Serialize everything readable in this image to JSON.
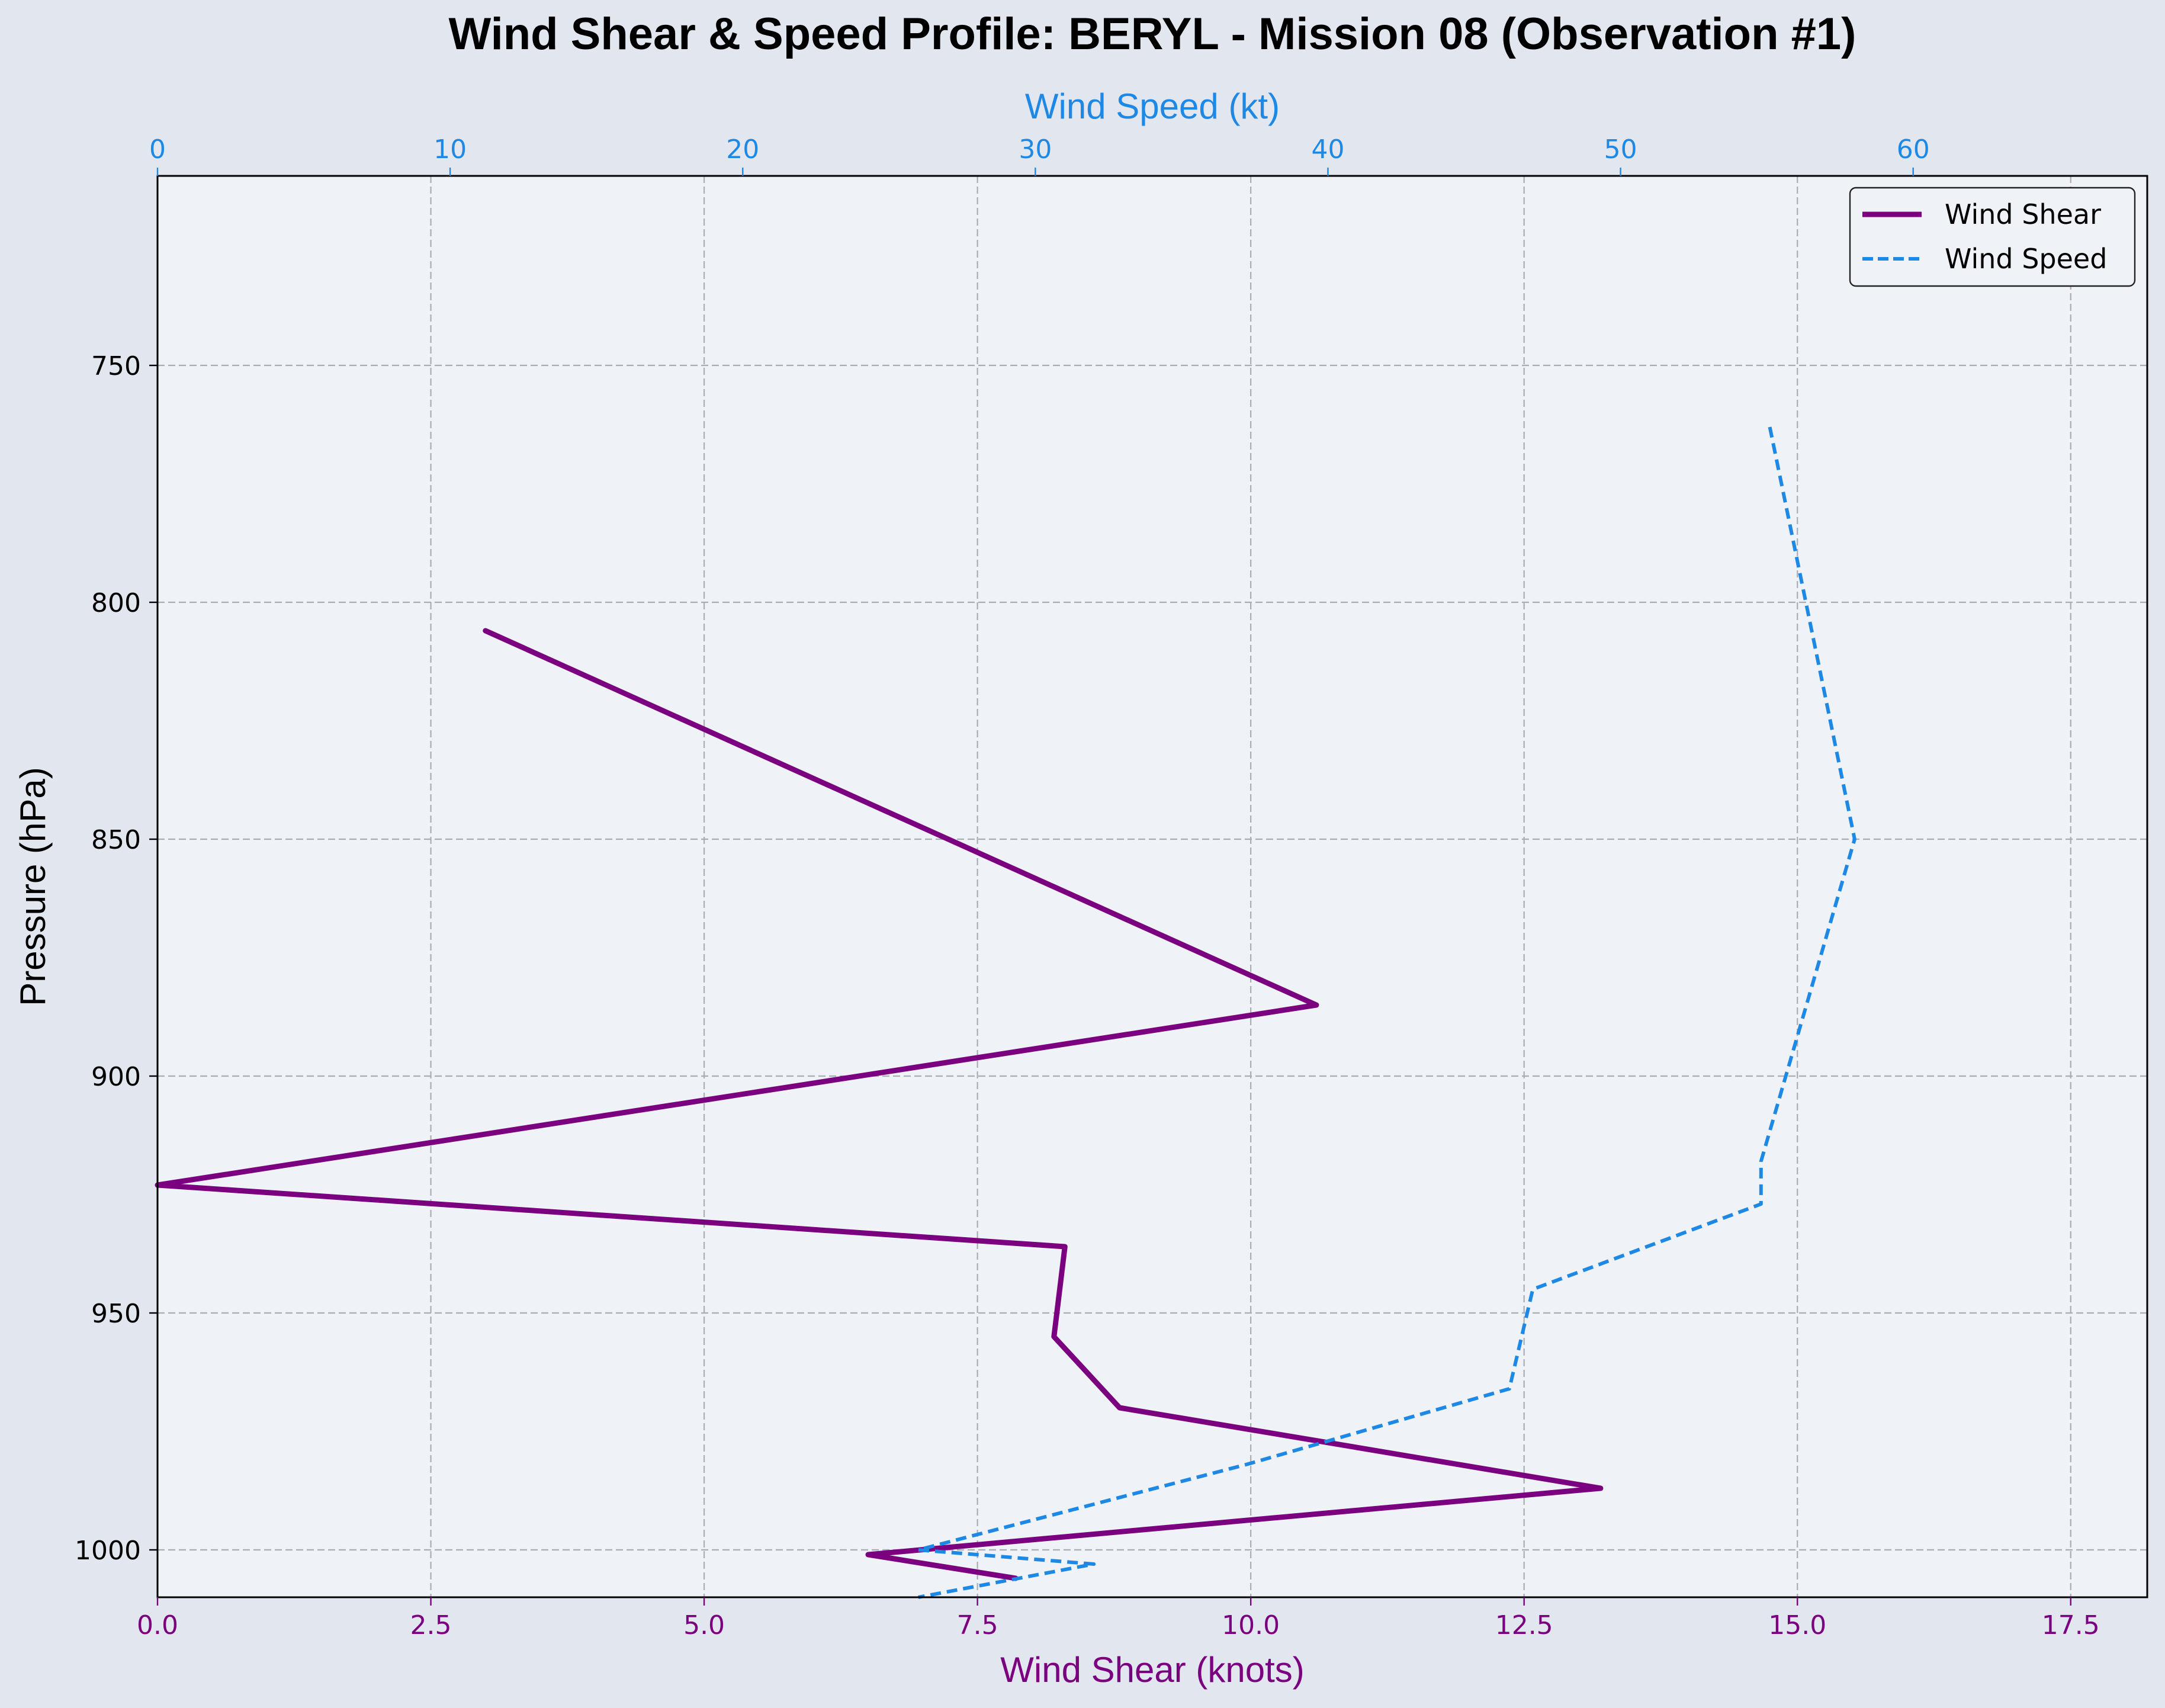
{
  "chart_data": {
    "type": "line",
    "title": "Wind Shear & Speed Profile: BERYL - Mission 08 (Observation #1)",
    "ylabel": "Pressure (hPa)",
    "ylim": [
      710,
      1010
    ],
    "y_inverted": true,
    "yticks": [
      750,
      800,
      850,
      900,
      950,
      1000
    ],
    "x_bottom": {
      "label": "Wind Shear (knots)",
      "lim": [
        0,
        18.2
      ],
      "ticks": [
        0.0,
        2.5,
        5.0,
        7.5,
        10.0,
        12.5,
        15.0,
        17.5
      ],
      "tick_labels": [
        "0.0",
        "2.5",
        "5.0",
        "7.5",
        "10.0",
        "12.5",
        "15.0",
        "17.5"
      ],
      "color": "#7b0080"
    },
    "x_top": {
      "label": "Wind Speed (kt)",
      "lim": [
        0,
        68
      ],
      "ticks": [
        0,
        10,
        20,
        30,
        40,
        50,
        60
      ],
      "tick_labels": [
        "0",
        "10",
        "20",
        "30",
        "40",
        "50",
        "60"
      ],
      "color": "#1e88e5"
    },
    "grid": true,
    "legend_position": "top-right",
    "series": [
      {
        "name": "Wind Shear",
        "axis": "bottom",
        "style": "solid",
        "color": "#7b0080",
        "points": [
          {
            "x": 3.0,
            "y": 806
          },
          {
            "x": 10.6,
            "y": 885
          },
          {
            "x": 0.0,
            "y": 923
          },
          {
            "x": 8.3,
            "y": 936
          },
          {
            "x": 8.2,
            "y": 955
          },
          {
            "x": 8.8,
            "y": 970
          },
          {
            "x": 13.2,
            "y": 987
          },
          {
            "x": 6.5,
            "y": 1001
          },
          {
            "x": 7.85,
            "y": 1006
          }
        ]
      },
      {
        "name": "Wind Speed",
        "axis": "top",
        "style": "dashed",
        "color": "#1e88e5",
        "points": [
          {
            "x": 55.1,
            "y": 763
          },
          {
            "x": 58.0,
            "y": 850
          },
          {
            "x": 54.8,
            "y": 918
          },
          {
            "x": 54.8,
            "y": 927
          },
          {
            "x": 47.0,
            "y": 945
          },
          {
            "x": 46.2,
            "y": 966
          },
          {
            "x": 37.2,
            "y": 982
          },
          {
            "x": 26.0,
            "y": 1000
          },
          {
            "x": 32.0,
            "y": 1003
          },
          {
            "x": 26.0,
            "y": 1010
          }
        ]
      }
    ]
  }
}
